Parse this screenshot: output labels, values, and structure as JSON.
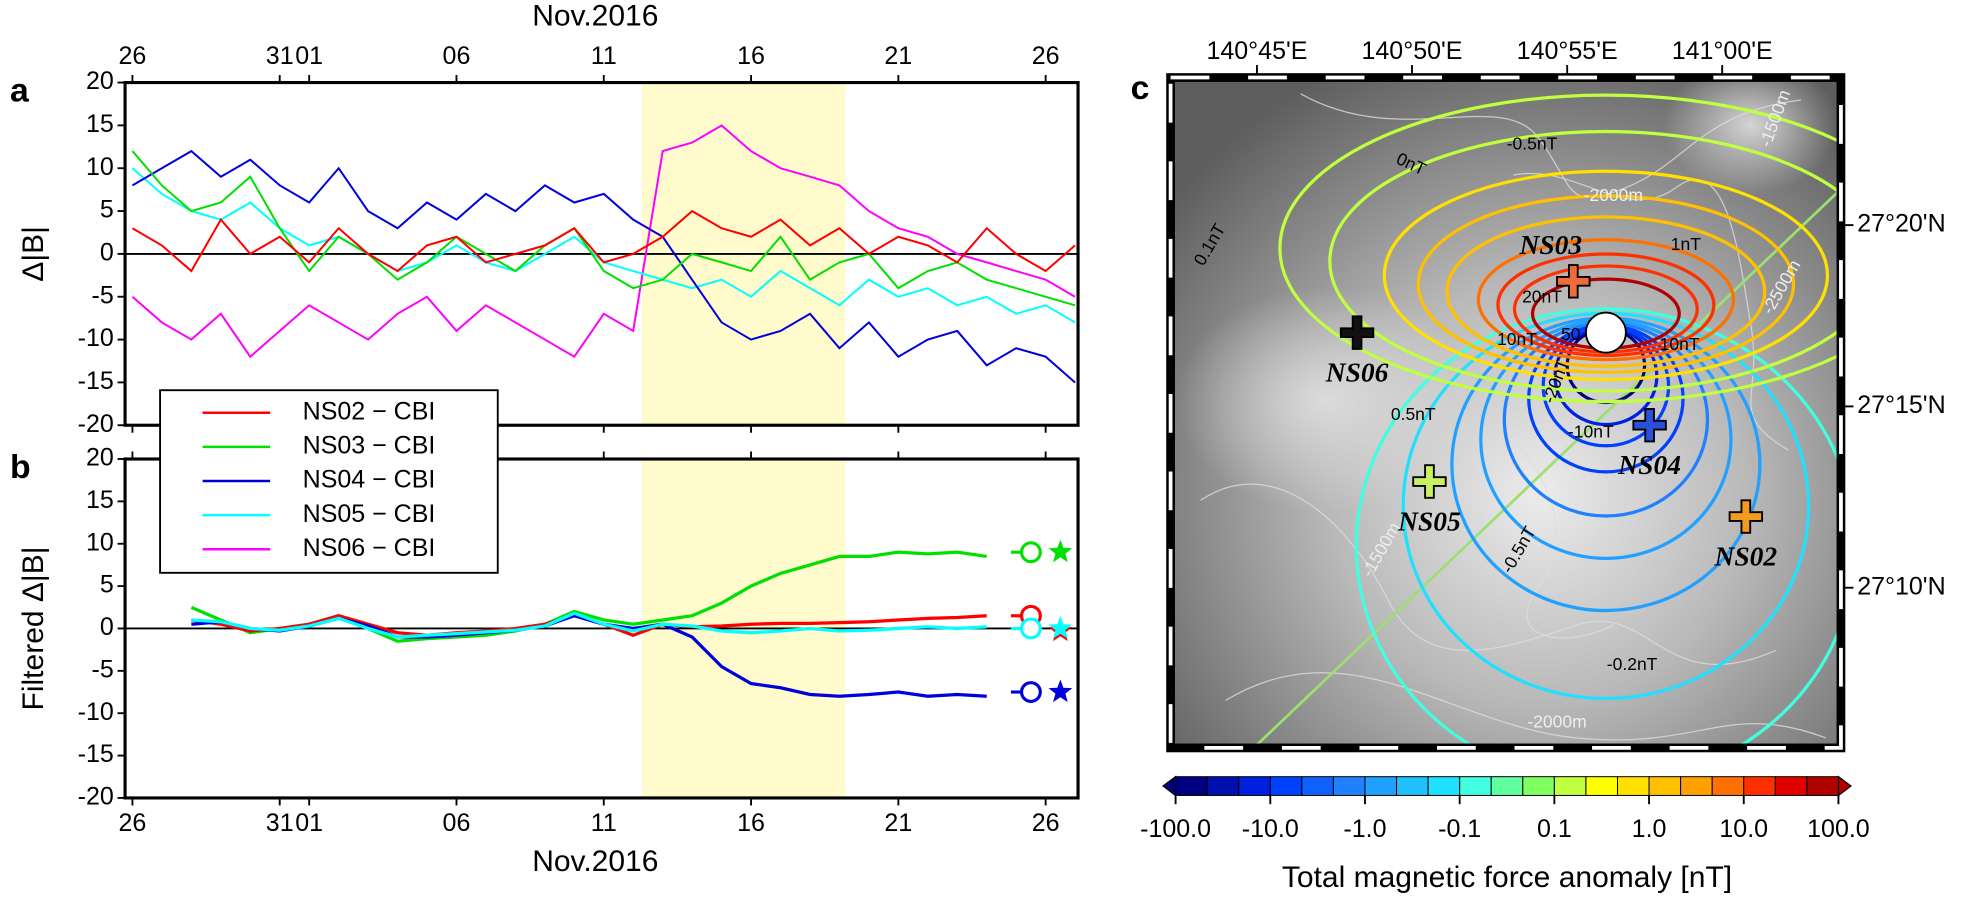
{
  "chart_data": [
    {
      "type": "line",
      "label": "a",
      "title": "Nov.2016",
      "ylabel": "Δ|B|",
      "x": [
        0,
        1,
        2,
        3,
        4,
        5,
        6,
        7,
        8,
        9,
        10,
        11,
        12,
        13,
        14,
        15,
        16,
        17,
        18,
        19,
        20,
        21,
        22,
        23,
        24,
        25,
        26,
        27,
        28,
        29,
        30,
        31,
        32
      ],
      "xlim": [
        -0.25,
        32.1
      ],
      "xticks": [
        {
          "value": 0,
          "label": "26"
        },
        {
          "value": 5,
          "label": "31"
        },
        {
          "value": 6,
          "label": "01"
        },
        {
          "value": 11,
          "label": "06"
        },
        {
          "value": 16,
          "label": "11"
        },
        {
          "value": 21,
          "label": "16"
        },
        {
          "value": 26,
          "label": "21"
        },
        {
          "value": 31,
          "label": "26"
        }
      ],
      "ylim": [
        -20,
        20
      ],
      "yticks": [
        -20,
        -15,
        -10,
        -5,
        0,
        5,
        10,
        15,
        20
      ],
      "shade": [
        17.3,
        24.2
      ],
      "reference_line": 0,
      "legend": "lower left",
      "series": [
        {
          "name": "NS06 − CBI",
          "color": "#ff00ff",
          "values": [
            -5,
            -8,
            -10,
            -7,
            -12,
            -9,
            -6,
            -8,
            -10,
            -7,
            -5,
            -9,
            -6,
            -8,
            -10,
            -12,
            -7,
            -9,
            12,
            13,
            15,
            12,
            10,
            9,
            8,
            5,
            3,
            2,
            0,
            -1,
            -2,
            -3,
            -5
          ]
        },
        {
          "name": "NS05 − CBI",
          "color": "#00ffff",
          "values": [
            10,
            7,
            5,
            4,
            6,
            3,
            1,
            2,
            0,
            -2,
            -1,
            1,
            -1,
            -2,
            0,
            2,
            -1,
            -2,
            -3,
            -4,
            -3,
            -5,
            -2,
            -4,
            -6,
            -3,
            -5,
            -4,
            -6,
            -5,
            -7,
            -6,
            -8
          ]
        },
        {
          "name": "NS04 − CBI",
          "color": "#0000dd",
          "values": [
            8,
            10,
            12,
            9,
            11,
            8,
            6,
            10,
            5,
            3,
            6,
            4,
            7,
            5,
            8,
            6,
            7,
            4,
            2,
            -3,
            -8,
            -10,
            -9,
            -7,
            -11,
            -8,
            -12,
            -10,
            -9,
            -13,
            -11,
            -12,
            -15
          ]
        },
        {
          "name": "NS03 − CBI",
          "color": "#00e000",
          "values": [
            12,
            8,
            5,
            6,
            9,
            3,
            -2,
            2,
            0,
            -3,
            -1,
            2,
            0,
            -2,
            1,
            3,
            -2,
            -4,
            -3,
            0,
            -1,
            -2,
            2,
            -3,
            -1,
            0,
            -4,
            -2,
            -1,
            -3,
            -4,
            -5,
            -6
          ]
        },
        {
          "name": "NS02 − CBI",
          "color": "#ff0000",
          "values": [
            3,
            1,
            -2,
            4,
            0,
            2,
            -1,
            3,
            0,
            -2,
            1,
            2,
            -1,
            0,
            1,
            3,
            -1,
            0,
            2,
            5,
            3,
            2,
            4,
            1,
            3,
            0,
            2,
            1,
            -1,
            3,
            0,
            -2,
            1
          ]
        }
      ]
    },
    {
      "type": "line",
      "label": "b",
      "xlabel": "Nov.2016",
      "ylabel": "Filtered Δ|B|",
      "x": [
        0,
        1,
        2,
        3,
        4,
        5,
        6,
        7,
        8,
        9,
        10,
        11,
        12,
        13,
        14,
        15,
        16,
        17,
        18,
        19,
        20,
        21,
        22,
        23,
        24,
        25,
        26,
        27,
        28,
        29,
        30,
        31,
        32
      ],
      "xlim": [
        -0.25,
        32.1
      ],
      "xticks": [
        {
          "value": 0,
          "label": "26"
        },
        {
          "value": 5,
          "label": "31"
        },
        {
          "value": 6,
          "label": "01"
        },
        {
          "value": 11,
          "label": "06"
        },
        {
          "value": 16,
          "label": "11"
        },
        {
          "value": 21,
          "label": "16"
        },
        {
          "value": 26,
          "label": "21"
        },
        {
          "value": 31,
          "label": "26"
        }
      ],
      "ylim": [
        -20,
        20
      ],
      "yticks": [
        -20,
        -15,
        -10,
        -5,
        0,
        5,
        10,
        15,
        20
      ],
      "shade": [
        17.3,
        24.2
      ],
      "reference_line": 0,
      "series": [
        {
          "color": "#00e000",
          "values": [
            null,
            null,
            2.5,
            1,
            -0.5,
            0,
            0.5,
            1.5,
            0,
            -1.5,
            -1.2,
            -1,
            -0.8,
            -0.3,
            0.5,
            2,
            1,
            0.5,
            1,
            1.5,
            3,
            5,
            6.5,
            7.5,
            8.5,
            8.5,
            9,
            8.8,
            9,
            8.5,
            null,
            null,
            null
          ],
          "circle": 9,
          "star": 9
        },
        {
          "color": "#ff0000",
          "values": [
            null,
            null,
            1,
            0.5,
            -0.3,
            0,
            0.5,
            1.5,
            0.5,
            -0.5,
            -0.8,
            -0.5,
            -0.3,
            0,
            0.5,
            1.5,
            0.5,
            -0.8,
            0.5,
            0.2,
            0.3,
            0.5,
            0.6,
            0.6,
            0.7,
            0.8,
            1,
            1.2,
            1.3,
            1.5,
            null,
            null,
            null
          ],
          "circle": 1.5,
          "star": -0.3
        },
        {
          "color": "#0000dd",
          "values": [
            null,
            null,
            0.5,
            0.8,
            0,
            -0.3,
            0.3,
            1.2,
            0.3,
            -1,
            -1,
            -0.8,
            -0.5,
            -0.2,
            0.3,
            1.5,
            0.5,
            0,
            0.5,
            -1,
            -4.5,
            -6.5,
            -7,
            -7.8,
            -8,
            -7.8,
            -7.5,
            -8,
            -7.8,
            -8,
            null,
            null,
            null
          ],
          "circle": -7.5,
          "star": -7.5
        },
        {
          "color": "#00ffff",
          "values": [
            null,
            null,
            1,
            0.8,
            0,
            -0.2,
            0.3,
            1.2,
            0,
            -1,
            -0.8,
            -0.6,
            -0.4,
            -0.2,
            0.3,
            1.8,
            0.5,
            -0.3,
            0.5,
            0.3,
            -0.3,
            -0.5,
            -0.3,
            0,
            -0.3,
            -0.2,
            0,
            0.2,
            0,
            0.2,
            null,
            null,
            null
          ],
          "circle": 0,
          "star": 0
        }
      ]
    },
    {
      "type": "map",
      "label": "c",
      "xlim": [
        140.7036,
        141.0638
      ],
      "ylim": [
        27.0931,
        27.4011
      ],
      "xticks": [
        {
          "value": 140.75,
          "label": "140°45'E"
        },
        {
          "value": 140.8333,
          "label": "140°50'E"
        },
        {
          "value": 140.9167,
          "label": "140°55'E"
        },
        {
          "value": 141.0,
          "label": "141°00'E"
        }
      ],
      "yticks": [
        {
          "value": 27.1667,
          "label": "27°10'N"
        },
        {
          "value": 27.25,
          "label": "27°15'N"
        },
        {
          "value": 27.3333,
          "label": "27°20'N"
        }
      ],
      "source": {
        "lon": 140.9375,
        "lat": 27.2839
      },
      "stations": [
        {
          "name": "NS03",
          "lon": 140.92,
          "lat": 27.3075,
          "color": "#f06a3a"
        },
        {
          "name": "NS06",
          "lon": 140.8038,
          "lat": 27.2839,
          "color": "#111111"
        },
        {
          "name": "NS04",
          "lon": 140.961,
          "lat": 27.2414,
          "color": "#2a4fd8"
        },
        {
          "name": "NS05",
          "lon": 140.8427,
          "lat": 27.2155,
          "color": "#c8f060"
        },
        {
          "name": "NS02",
          "lon": 141.0127,
          "lat": 27.1994,
          "color": "#f59a20"
        }
      ],
      "contour_levels": [
        -50,
        -20,
        -10,
        -5,
        -2,
        -1,
        -0.5,
        -0.2,
        -0.1,
        0.1,
        0.2,
        0.5,
        1,
        2,
        5,
        10,
        20,
        50
      ],
      "contour_labels": [
        "-0.5nT",
        "0nT",
        "0.1nT",
        "1nT",
        "20nT",
        "10nT",
        "50",
        "10nT",
        "-20nT",
        "-10nT",
        "0.5nT",
        "-0.5nT",
        "-0.2nT"
      ],
      "depth_labels": [
        "-1500m",
        "-2000m",
        "-2500m",
        "-1500m",
        "-2000m"
      ],
      "colorbar": {
        "label": "Total magnetic force anomaly [nT]",
        "ticks": [
          {
            "value": -100,
            "label": "-100.0"
          },
          {
            "value": -10,
            "label": "-10.0"
          },
          {
            "value": -1,
            "label": "-1.0"
          },
          {
            "value": -0.1,
            "label": "-0.1"
          },
          {
            "value": 0.1,
            "label": "0.1"
          },
          {
            "value": 1,
            "label": "1.0"
          },
          {
            "value": 10,
            "label": "10.0"
          },
          {
            "value": 100,
            "label": "100.0"
          }
        ],
        "colors": [
          "#000080",
          "#0010b0",
          "#0020e0",
          "#0040ff",
          "#1060ff",
          "#2080ff",
          "#20a0ff",
          "#20c0ff",
          "#20e0ff",
          "#40ffe0",
          "#60ffa0",
          "#80ff60",
          "#c0ff40",
          "#ffff00",
          "#ffe000",
          "#ffc000",
          "#ffa000",
          "#ff7000",
          "#ff3000",
          "#e00000",
          "#b00000"
        ]
      }
    }
  ]
}
